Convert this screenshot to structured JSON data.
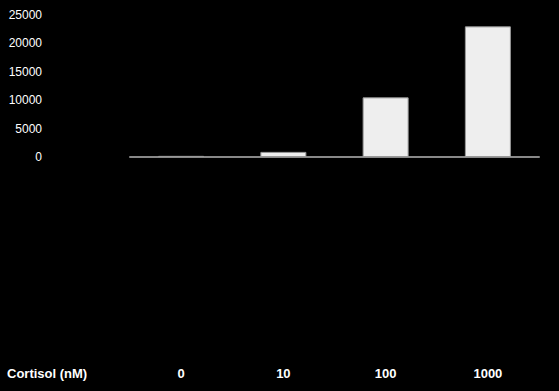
{
  "chart_data": {
    "type": "bar",
    "x_label": "Cortisol (nM)",
    "categories": [
      "0",
      "10",
      "100",
      "1000"
    ],
    "values": [
      200,
      900,
      10500,
      23000
    ],
    "color": "#eeeeee",
    "ylim": [
      0,
      25000
    ],
    "yticks": [
      0,
      5000,
      10000,
      15000,
      20000,
      25000
    ],
    "grid": false
  }
}
